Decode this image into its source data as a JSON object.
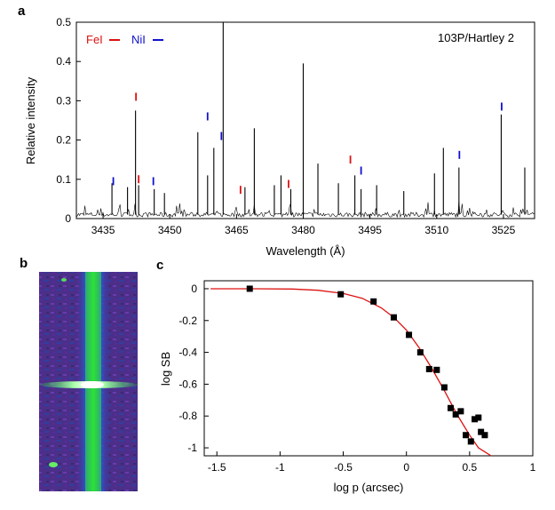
{
  "panels": {
    "a": "a",
    "b": "b",
    "c": "c"
  },
  "chart_data": [
    {
      "panel": "a",
      "type": "line",
      "annotation": "103P/Hartley 2",
      "xlabel": "Wavelength (Å)",
      "ylabel": "Relative intensity",
      "xlim": [
        3429,
        3532
      ],
      "ylim": [
        0,
        0.5
      ],
      "x_ticks": [
        3435,
        3450,
        3465,
        3480,
        3495,
        3510,
        3525
      ],
      "y_ticks": [
        0,
        0.1,
        0.2,
        0.3,
        0.4,
        0.5
      ],
      "y_tick_labels": [
        "0",
        "0.1",
        "0.2",
        "0.3",
        "0.4",
        "0.5"
      ],
      "legend": [
        {
          "name": "FeI",
          "color": "#dd1111"
        },
        {
          "name": "NiI",
          "color": "#1111cc"
        }
      ],
      "emission_lines": [
        {
          "x": 3437.0,
          "y": 0.09
        },
        {
          "x": 3440.5,
          "y": 0.08
        },
        {
          "x": 3442.3,
          "y": 0.275
        },
        {
          "x": 3443.0,
          "y": 0.085
        },
        {
          "x": 3446.5,
          "y": 0.075
        },
        {
          "x": 3448.8,
          "y": 0.065
        },
        {
          "x": 3456.3,
          "y": 0.22
        },
        {
          "x": 3458.5,
          "y": 0.11
        },
        {
          "x": 3459.9,
          "y": 0.18
        },
        {
          "x": 3462.0,
          "y": 0.5
        },
        {
          "x": 3466.9,
          "y": 0.08
        },
        {
          "x": 3469.0,
          "y": 0.23
        },
        {
          "x": 3473.5,
          "y": 0.085
        },
        {
          "x": 3475.0,
          "y": 0.11
        },
        {
          "x": 3477.2,
          "y": 0.075
        },
        {
          "x": 3480.0,
          "y": 0.395
        },
        {
          "x": 3483.3,
          "y": 0.14
        },
        {
          "x": 3487.9,
          "y": 0.09
        },
        {
          "x": 3491.6,
          "y": 0.11
        },
        {
          "x": 3493.0,
          "y": 0.075
        },
        {
          "x": 3496.5,
          "y": 0.085
        },
        {
          "x": 3502.6,
          "y": 0.07
        },
        {
          "x": 3509.5,
          "y": 0.115
        },
        {
          "x": 3511.5,
          "y": 0.18
        },
        {
          "x": 3515.0,
          "y": 0.13
        },
        {
          "x": 3524.5,
          "y": 0.265
        },
        {
          "x": 3529.8,
          "y": 0.13
        }
      ],
      "line_markers": [
        {
          "species": "FeI",
          "x": 3442.4,
          "y": 0.3
        },
        {
          "species": "FeI",
          "x": 3443.0,
          "y": 0.09
        },
        {
          "species": "FeI",
          "x": 3465.9,
          "y": 0.063
        },
        {
          "species": "FeI",
          "x": 3476.7,
          "y": 0.078
        },
        {
          "species": "FeI",
          "x": 3490.6,
          "y": 0.14
        },
        {
          "species": "NiI",
          "x": 3437.3,
          "y": 0.085
        },
        {
          "species": "NiI",
          "x": 3446.3,
          "y": 0.085
        },
        {
          "species": "NiI",
          "x": 3458.5,
          "y": 0.25
        },
        {
          "species": "NiI",
          "x": 3461.6,
          "y": 0.2
        },
        {
          "species": "NiI",
          "x": 3493.0,
          "y": 0.112
        },
        {
          "species": "NiI",
          "x": 3515.1,
          "y": 0.152
        },
        {
          "species": "NiI",
          "x": 3524.6,
          "y": 0.275
        }
      ],
      "colors": {
        "spectrum": "#000000",
        "FeI": "#dd1111",
        "NiI": "#1111cc"
      }
    },
    {
      "panel": "b",
      "type": "heatmap",
      "description_colors": {
        "background": "#4a2a8a",
        "band": "#22cc22",
        "core": "#ffffff"
      }
    },
    {
      "panel": "c",
      "type": "scatter",
      "xlabel": "log p (arcsec)",
      "ylabel": "log SB",
      "xlim": [
        -1.6,
        1.0
      ],
      "ylim": [
        -1.05,
        0.05
      ],
      "x_ticks": [
        -1.5,
        -1,
        -0.5,
        0,
        0.5,
        1
      ],
      "x_tick_labels": [
        "-1.5",
        "-1",
        "-0.5",
        "0",
        "0.5",
        "1"
      ],
      "y_ticks": [
        0,
        -0.2,
        -0.4,
        -0.6,
        -0.8,
        -1
      ],
      "y_tick_labels": [
        "0",
        "-0.2",
        "-0.4",
        "-0.6",
        "-0.8",
        "-1"
      ],
      "points": [
        {
          "x": -1.24,
          "y": 0.0
        },
        {
          "x": -0.52,
          "y": -0.035
        },
        {
          "x": -0.26,
          "y": -0.08
        },
        {
          "x": -0.1,
          "y": -0.18
        },
        {
          "x": 0.02,
          "y": -0.29
        },
        {
          "x": 0.11,
          "y": -0.4
        },
        {
          "x": 0.18,
          "y": -0.505
        },
        {
          "x": 0.24,
          "y": -0.51
        },
        {
          "x": 0.3,
          "y": -0.62
        },
        {
          "x": 0.35,
          "y": -0.75
        },
        {
          "x": 0.39,
          "y": -0.79
        },
        {
          "x": 0.43,
          "y": -0.77
        },
        {
          "x": 0.47,
          "y": -0.92
        },
        {
          "x": 0.51,
          "y": -0.96
        },
        {
          "x": 0.54,
          "y": -0.82
        },
        {
          "x": 0.57,
          "y": -0.81
        },
        {
          "x": 0.59,
          "y": -0.9
        },
        {
          "x": 0.62,
          "y": -0.92
        }
      ],
      "fit_curve": [
        {
          "x": -1.55,
          "y": 0.0
        },
        {
          "x": -1.2,
          "y": 0.0
        },
        {
          "x": -0.9,
          "y": -0.002
        },
        {
          "x": -0.7,
          "y": -0.01
        },
        {
          "x": -0.5,
          "y": -0.03
        },
        {
          "x": -0.35,
          "y": -0.06
        },
        {
          "x": -0.2,
          "y": -0.12
        },
        {
          "x": -0.1,
          "y": -0.18
        },
        {
          "x": 0.0,
          "y": -0.26
        },
        {
          "x": 0.1,
          "y": -0.37
        },
        {
          "x": 0.2,
          "y": -0.5
        },
        {
          "x": 0.3,
          "y": -0.64
        },
        {
          "x": 0.4,
          "y": -0.79
        },
        {
          "x": 0.5,
          "y": -0.92
        },
        {
          "x": 0.57,
          "y": -1.0
        },
        {
          "x": 0.67,
          "y": -1.05
        }
      ],
      "colors": {
        "points": "#000000",
        "fit": "#dd1111"
      }
    }
  ]
}
